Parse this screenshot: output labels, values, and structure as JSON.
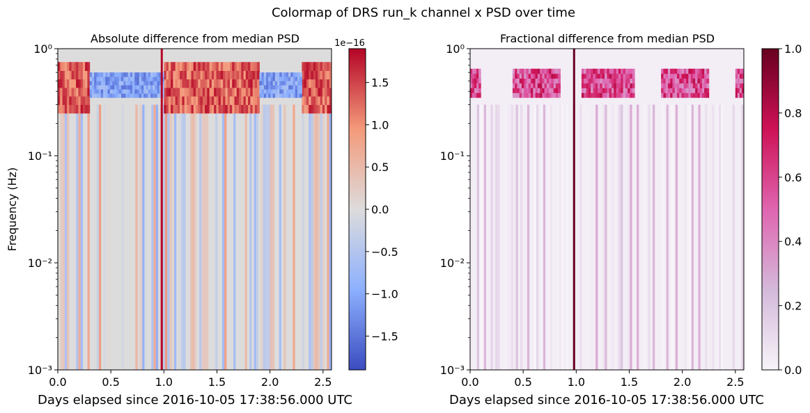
{
  "suptitle": "Colormap of DRS run_k channel x PSD over time",
  "chart_data": [
    {
      "type": "heatmap",
      "title": "Absolute difference from median PSD",
      "xlabel": "Days elapsed since 2016-10-05 17:38:56.000 UTC",
      "ylabel": "Frequency (Hz)",
      "xlim": [
        0,
        2.58
      ],
      "ylim": [
        0.001,
        1
      ],
      "yscale": "log",
      "x_ticks": [
        0,
        0.5,
        1.0,
        1.5,
        2.0,
        2.5
      ],
      "x_tick_labels": [
        "0.0",
        "0.5",
        "1.0",
        "1.5",
        "2.0",
        "2.5"
      ],
      "y_tick_labels": [
        "10⁻³",
        "10⁻²",
        "10⁻¹",
        "10⁰"
      ],
      "colormap": "coolwarm",
      "colorbar": {
        "range": [
          -1.9,
          1.9
        ],
        "ticks": [
          -1.5,
          -1.0,
          -0.5,
          0.0,
          0.5,
          1.0,
          1.5
        ],
        "tick_labels": [
          "−1.5",
          "−1.0",
          "−0.5",
          "0.0",
          "0.5",
          "1.0",
          "1.5"
        ],
        "offset_label": "1e−16"
      },
      "features": [
        {
          "kind": "high_frequency_band",
          "freq_range_hz": [
            0.25,
            0.75
          ],
          "x_ranges": [
            [
              0,
              0.3
            ],
            [
              1.0,
              1.9
            ],
            [
              2.3,
              2.58
            ]
          ],
          "sign": "positive"
        },
        {
          "kind": "high_frequency_band",
          "freq_range_hz": [
            0.35,
            0.6
          ],
          "x_ranges": [
            [
              0.3,
              1.0
            ],
            [
              1.9,
              2.3
            ]
          ],
          "sign": "negative"
        },
        {
          "kind": "spike",
          "day": 0.98,
          "sign": "positive",
          "strength": 1.0
        }
      ]
    },
    {
      "type": "heatmap",
      "title": "Fractional difference from median PSD",
      "xlabel": "Days elapsed since 2016-10-05 17:38:56.000 UTC",
      "ylabel": "",
      "xlim": [
        0,
        2.58
      ],
      "ylim": [
        0.001,
        1
      ],
      "yscale": "log",
      "x_ticks": [
        0,
        0.5,
        1.0,
        1.5,
        2.0,
        2.5
      ],
      "x_tick_labels": [
        "0.0",
        "0.5",
        "1.0",
        "1.5",
        "2.0",
        "2.5"
      ],
      "y_tick_labels": [
        "10⁻³",
        "10⁻²",
        "10⁻¹",
        "10⁰"
      ],
      "colormap": "PuRd",
      "colorbar": {
        "range": [
          0,
          1
        ],
        "ticks": [
          0,
          0.2,
          0.4,
          0.6,
          0.8,
          1.0
        ],
        "tick_labels": [
          "0.0",
          "0.2",
          "0.4",
          "0.6",
          "0.8",
          "1.0"
        ],
        "offset_label": ""
      },
      "features": [
        {
          "kind": "high_frequency_band",
          "freq_range_hz": [
            0.35,
            0.65
          ],
          "x_ranges": [
            [
              0,
              0.1
            ],
            [
              0.4,
              0.85
            ],
            [
              1.05,
              1.55
            ],
            [
              1.8,
              2.25
            ],
            [
              2.5,
              2.58
            ]
          ],
          "sign": "positive"
        },
        {
          "kind": "spike",
          "day": 0.98,
          "sign": "positive",
          "strength": 1.0
        }
      ]
    }
  ]
}
